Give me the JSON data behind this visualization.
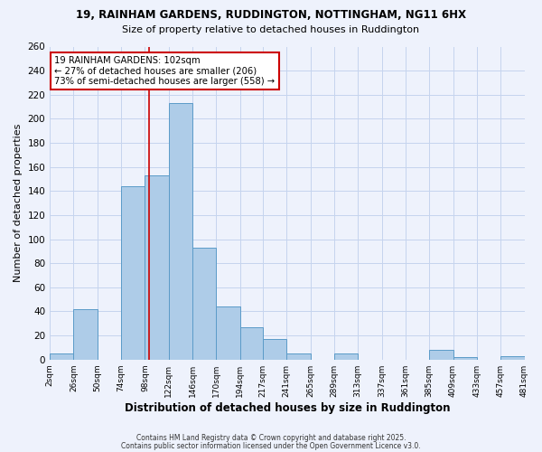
{
  "title": "19, RAINHAM GARDENS, RUDDINGTON, NOTTINGHAM, NG11 6HX",
  "subtitle": "Size of property relative to detached houses in Ruddington",
  "xlabel": "Distribution of detached houses by size in Ruddington",
  "ylabel": "Number of detached properties",
  "bar_edges": [
    2,
    26,
    50,
    74,
    98,
    122,
    146,
    170,
    194,
    217,
    241,
    265,
    289,
    313,
    337,
    361,
    385,
    409,
    433,
    457,
    481
  ],
  "bar_heights": [
    5,
    42,
    0,
    144,
    153,
    213,
    93,
    44,
    27,
    17,
    5,
    0,
    5,
    0,
    0,
    0,
    8,
    2,
    0,
    3
  ],
  "bar_color": "#aecce8",
  "bar_edge_color": "#5b9bc8",
  "reference_line_x": 102,
  "reference_line_color": "#cc0000",
  "annotation_line1": "19 RAINHAM GARDENS: 102sqm",
  "annotation_line2": "← 27% of detached houses are smaller (206)",
  "annotation_line3": "73% of semi-detached houses are larger (558) →",
  "annotation_box_color": "#ffffff",
  "annotation_box_edge_color": "#cc0000",
  "ylim": [
    0,
    260
  ],
  "yticks": [
    0,
    20,
    40,
    60,
    80,
    100,
    120,
    140,
    160,
    180,
    200,
    220,
    240,
    260
  ],
  "tick_labels": [
    "2sqm",
    "26sqm",
    "50sqm",
    "74sqm",
    "98sqm",
    "122sqm",
    "146sqm",
    "170sqm",
    "194sqm",
    "217sqm",
    "241sqm",
    "265sqm",
    "289sqm",
    "313sqm",
    "337sqm",
    "361sqm",
    "385sqm",
    "409sqm",
    "433sqm",
    "457sqm",
    "481sqm"
  ],
  "copyright_text1": "Contains HM Land Registry data © Crown copyright and database right 2025.",
  "copyright_text2": "Contains public sector information licensed under the Open Government Licence v3.0.",
  "background_color": "#eef2fc",
  "grid_color": "#c5d4ee"
}
